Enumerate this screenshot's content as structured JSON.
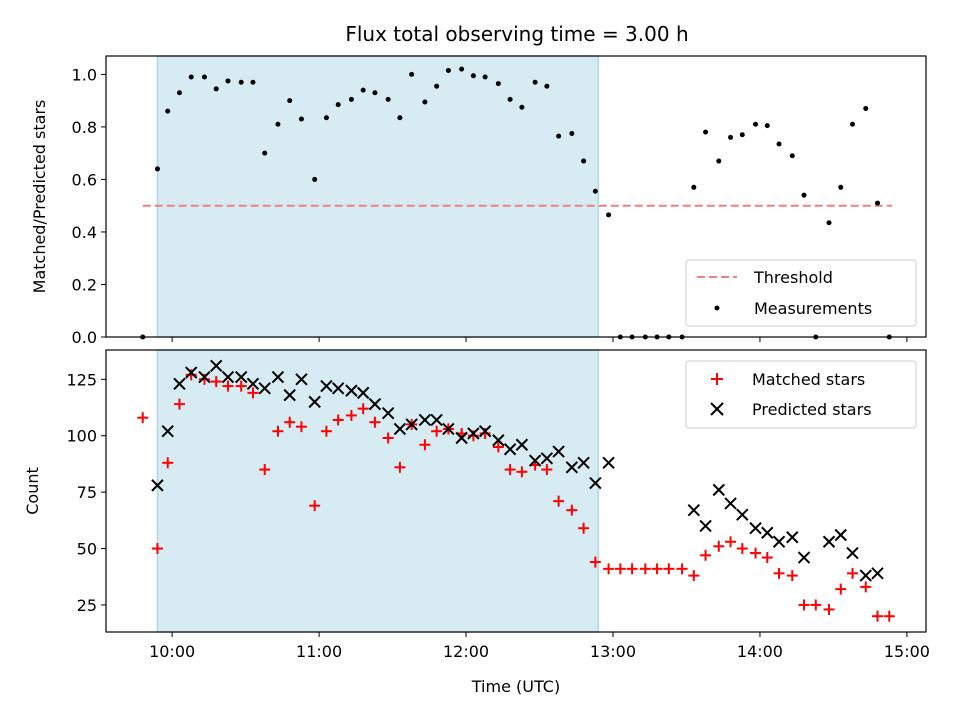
{
  "chart_data": [
    {
      "type": "scatter",
      "title": "Flux total observing time = 3.00 h",
      "ylabel": "Matched/Predicted stars",
      "xlabel": "",
      "x_unit": "hours UTC",
      "xlim": [
        9.55,
        15.13
      ],
      "ylim": [
        0.0,
        1.07
      ],
      "yticks": [
        0.0,
        0.2,
        0.4,
        0.6,
        0.8,
        1.0
      ],
      "ytick_labels": [
        "0.0",
        "0.2",
        "0.4",
        "0.6",
        "0.8",
        "1.0"
      ],
      "shaded_span": {
        "from": 9.9,
        "to": 12.9,
        "color": "#add8e6"
      },
      "threshold": {
        "name": "Threshold",
        "value": 0.5,
        "from": 9.8,
        "to": 14.9,
        "color": "#f08080"
      },
      "legend": {
        "placement": "lower-right",
        "entries": [
          "Threshold",
          "Measurements"
        ]
      },
      "series": [
        {
          "name": "Measurements",
          "color": "#000000",
          "marker": "dot",
          "points": [
            [
              9.8,
              0.0
            ],
            [
              9.9,
              0.64
            ],
            [
              9.97,
              0.86
            ],
            [
              10.05,
              0.93
            ],
            [
              10.13,
              0.99
            ],
            [
              10.22,
              0.99
            ],
            [
              10.3,
              0.945
            ],
            [
              10.38,
              0.975
            ],
            [
              10.47,
              0.97
            ],
            [
              10.55,
              0.97
            ],
            [
              10.63,
              0.7
            ],
            [
              10.72,
              0.81
            ],
            [
              10.8,
              0.9
            ],
            [
              10.88,
              0.83
            ],
            [
              10.97,
              0.6
            ],
            [
              11.05,
              0.835
            ],
            [
              11.13,
              0.885
            ],
            [
              11.22,
              0.905
            ],
            [
              11.3,
              0.94
            ],
            [
              11.38,
              0.93
            ],
            [
              11.47,
              0.905
            ],
            [
              11.55,
              0.835
            ],
            [
              11.63,
              1.0
            ],
            [
              11.72,
              0.895
            ],
            [
              11.8,
              0.955
            ],
            [
              11.88,
              1.015
            ],
            [
              11.97,
              1.02
            ],
            [
              12.05,
              0.995
            ],
            [
              12.13,
              0.99
            ],
            [
              12.22,
              0.965
            ],
            [
              12.3,
              0.905
            ],
            [
              12.38,
              0.875
            ],
            [
              12.47,
              0.97
            ],
            [
              12.55,
              0.955
            ],
            [
              12.63,
              0.765
            ],
            [
              12.72,
              0.775
            ],
            [
              12.8,
              0.67
            ],
            [
              12.88,
              0.555
            ],
            [
              12.97,
              0.465
            ],
            [
              13.05,
              0.0
            ],
            [
              13.13,
              0.0
            ],
            [
              13.22,
              0.0
            ],
            [
              13.3,
              0.0
            ],
            [
              13.38,
              0.0
            ],
            [
              13.47,
              0.0
            ],
            [
              13.55,
              0.57
            ],
            [
              13.63,
              0.78
            ],
            [
              13.72,
              0.67
            ],
            [
              13.8,
              0.76
            ],
            [
              13.88,
              0.77
            ],
            [
              13.97,
              0.81
            ],
            [
              14.05,
              0.805
            ],
            [
              14.13,
              0.735
            ],
            [
              14.22,
              0.69
            ],
            [
              14.3,
              0.54
            ],
            [
              14.38,
              0.0
            ],
            [
              14.47,
              0.435
            ],
            [
              14.55,
              0.57
            ],
            [
              14.63,
              0.81
            ],
            [
              14.72,
              0.87
            ],
            [
              14.8,
              0.51
            ],
            [
              14.88,
              0.0
            ]
          ]
        }
      ]
    },
    {
      "type": "scatter",
      "title": "",
      "ylabel": "Count",
      "xlabel": "Time (UTC)",
      "x_unit": "hours UTC",
      "xlim": [
        9.55,
        15.13
      ],
      "ylim": [
        13,
        138
      ],
      "yticks": [
        25,
        50,
        75,
        100,
        125
      ],
      "ytick_labels": [
        "25",
        "50",
        "75",
        "100",
        "125"
      ],
      "xticks": [
        10,
        11,
        12,
        13,
        14,
        15
      ],
      "xtick_labels": [
        "10:00",
        "11:00",
        "12:00",
        "13:00",
        "14:00",
        "15:00"
      ],
      "shaded_span": {
        "from": 9.9,
        "to": 12.9,
        "color": "#add8e6"
      },
      "legend": {
        "placement": "top-right",
        "entries": [
          "Matched stars",
          "Predicted stars"
        ]
      },
      "series": [
        {
          "name": "Matched stars",
          "color": "#ff0000",
          "marker": "plus",
          "points": [
            [
              9.8,
              108
            ],
            [
              9.9,
              50
            ],
            [
              9.97,
              88
            ],
            [
              10.05,
              114
            ],
            [
              10.13,
              127
            ],
            [
              10.22,
              125
            ],
            [
              10.3,
              124
            ],
            [
              10.38,
              122
            ],
            [
              10.47,
              122
            ],
            [
              10.55,
              119
            ],
            [
              10.63,
              85
            ],
            [
              10.72,
              102
            ],
            [
              10.8,
              106
            ],
            [
              10.88,
              104
            ],
            [
              10.97,
              69
            ],
            [
              11.05,
              102
            ],
            [
              11.13,
              107
            ],
            [
              11.22,
              109
            ],
            [
              11.3,
              112
            ],
            [
              11.38,
              106
            ],
            [
              11.47,
              99
            ],
            [
              11.55,
              86
            ],
            [
              11.63,
              105
            ],
            [
              11.72,
              96
            ],
            [
              11.8,
              102
            ],
            [
              11.88,
              103
            ],
            [
              11.97,
              101
            ],
            [
              12.05,
              100
            ],
            [
              12.13,
              101
            ],
            [
              12.22,
              95
            ],
            [
              12.3,
              85
            ],
            [
              12.38,
              84
            ],
            [
              12.47,
              87
            ],
            [
              12.55,
              85
            ],
            [
              12.63,
              71
            ],
            [
              12.72,
              67
            ],
            [
              12.8,
              59
            ],
            [
              12.88,
              44
            ],
            [
              12.97,
              41
            ],
            [
              13.05,
              41
            ],
            [
              13.13,
              41
            ],
            [
              13.22,
              41
            ],
            [
              13.3,
              41
            ],
            [
              13.38,
              41
            ],
            [
              13.47,
              41
            ],
            [
              13.55,
              38
            ],
            [
              13.63,
              47
            ],
            [
              13.72,
              51
            ],
            [
              13.8,
              53
            ],
            [
              13.88,
              50
            ],
            [
              13.97,
              48
            ],
            [
              14.05,
              46
            ],
            [
              14.13,
              39
            ],
            [
              14.22,
              38
            ],
            [
              14.3,
              25
            ],
            [
              14.38,
              25
            ],
            [
              14.47,
              23
            ],
            [
              14.55,
              32
            ],
            [
              14.63,
              39
            ],
            [
              14.72,
              33
            ],
            [
              14.8,
              20
            ],
            [
              14.88,
              20
            ]
          ]
        },
        {
          "name": "Predicted stars",
          "color": "#000000",
          "marker": "x",
          "points": [
            [
              9.9,
              78
            ],
            [
              9.97,
              102
            ],
            [
              10.05,
              123
            ],
            [
              10.13,
              128
            ],
            [
              10.22,
              126
            ],
            [
              10.3,
              131
            ],
            [
              10.38,
              126
            ],
            [
              10.47,
              126
            ],
            [
              10.55,
              123
            ],
            [
              10.63,
              121
            ],
            [
              10.72,
              126
            ],
            [
              10.8,
              118
            ],
            [
              10.88,
              125
            ],
            [
              10.97,
              115
            ],
            [
              11.05,
              122
            ],
            [
              11.13,
              121
            ],
            [
              11.22,
              120
            ],
            [
              11.3,
              119
            ],
            [
              11.38,
              114
            ],
            [
              11.47,
              110
            ],
            [
              11.55,
              103
            ],
            [
              11.63,
              105
            ],
            [
              11.72,
              107
            ],
            [
              11.8,
              107
            ],
            [
              11.88,
              103
            ],
            [
              11.97,
              99
            ],
            [
              12.05,
              101
            ],
            [
              12.13,
              102
            ],
            [
              12.22,
              98
            ],
            [
              12.3,
              94
            ],
            [
              12.38,
              96
            ],
            [
              12.47,
              89
            ],
            [
              12.55,
              90
            ],
            [
              12.63,
              93
            ],
            [
              12.72,
              86
            ],
            [
              12.8,
              88
            ],
            [
              12.88,
              79
            ],
            [
              12.97,
              88
            ],
            [
              13.55,
              67
            ],
            [
              13.63,
              60
            ],
            [
              13.72,
              76
            ],
            [
              13.8,
              70
            ],
            [
              13.88,
              65
            ],
            [
              13.97,
              59
            ],
            [
              14.05,
              57
            ],
            [
              14.13,
              53
            ],
            [
              14.22,
              55
            ],
            [
              14.3,
              46
            ],
            [
              14.47,
              53
            ],
            [
              14.55,
              56
            ],
            [
              14.63,
              48
            ],
            [
              14.72,
              38
            ],
            [
              14.8,
              39
            ]
          ]
        }
      ]
    }
  ]
}
